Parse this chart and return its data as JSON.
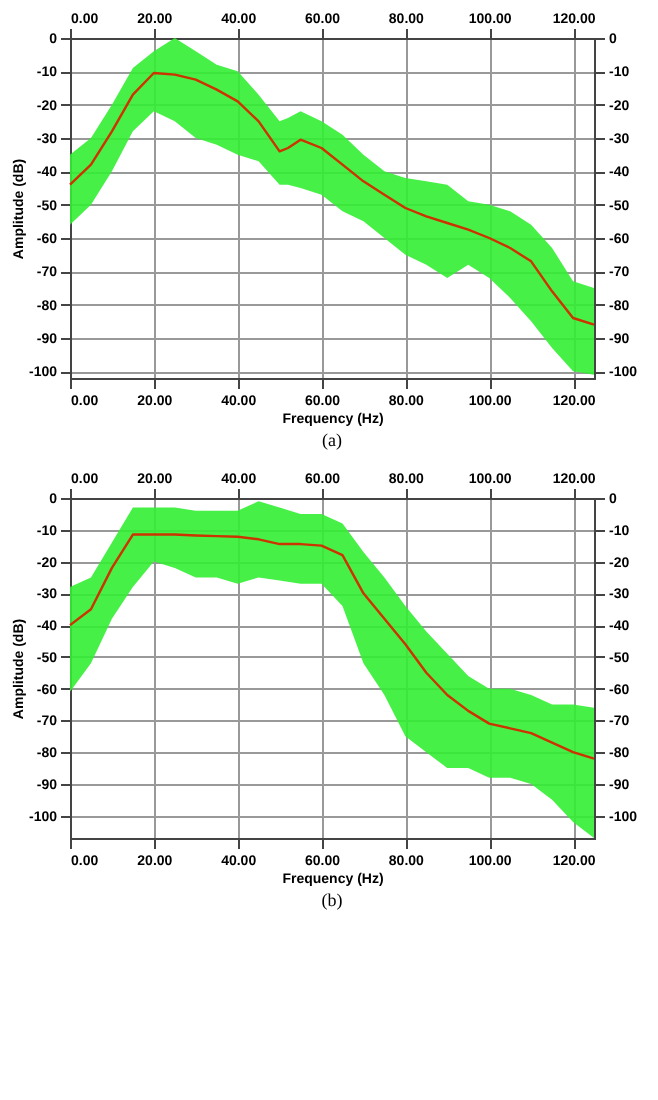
{
  "chart_data": [
    {
      "type": "line",
      "xlabel": "Frequency (Hz)",
      "ylabel": "Amplitude (dB)",
      "annotations": [
        "(a)"
      ],
      "grid": true,
      "x": [
        0,
        5,
        10,
        15,
        20,
        25,
        30,
        35,
        40,
        45,
        50,
        52,
        55,
        60,
        65,
        70,
        75,
        80,
        85,
        90,
        95,
        100,
        105,
        110,
        115,
        120,
        125
      ],
      "series": [
        {
          "color": "#cc3300",
          "lower": [
            -56,
            -50,
            -40,
            -28,
            -22,
            -25,
            -30,
            -32,
            -35,
            -37,
            -44,
            -44,
            -45,
            -47,
            -52,
            -55,
            -60,
            -65,
            -68,
            -72,
            -68,
            -72,
            -78,
            -85,
            -93,
            -100,
            -101
          ],
          "upper": [
            -35,
            -30,
            -20,
            -9,
            -4,
            0,
            -4,
            -8,
            -10,
            -17,
            -25,
            -24,
            -22,
            -25,
            -29,
            -35,
            -40,
            -42,
            -43,
            -44,
            -49,
            -50,
            -52,
            -56,
            -63,
            -73,
            -75
          ],
          "values": [
            -44,
            -38,
            -28,
            -17,
            -10.5,
            -11,
            -12.5,
            -15.5,
            -19,
            -25,
            -34,
            -33,
            -30.5,
            -33,
            -38,
            -43,
            -47,
            -51,
            -53.5,
            -55.5,
            -57.5,
            -60,
            -63,
            -67,
            -76,
            -84,
            -86
          ]
        }
      ],
      "xlim": [
        0,
        125
      ],
      "xticks": [
        {
          "value": 0,
          "label": "0.00"
        },
        {
          "value": 20,
          "label": "20.00"
        },
        {
          "value": 40,
          "label": "40.00"
        },
        {
          "value": 60,
          "label": "60.00"
        },
        {
          "value": 80,
          "label": "80.00"
        },
        {
          "value": 100,
          "label": "100.00"
        },
        {
          "value": 120,
          "label": "120.00"
        }
      ],
      "x2lim": [
        0,
        125
      ],
      "x2ticks": [
        {
          "value": 0,
          "label": "0.00"
        },
        {
          "value": 20,
          "label": "20.00"
        },
        {
          "value": 40,
          "label": "40.00"
        },
        {
          "value": 60,
          "label": "60.00"
        },
        {
          "value": 80,
          "label": "80.00"
        },
        {
          "value": 100,
          "label": "100.00"
        },
        {
          "value": 120,
          "label": "120.00"
        }
      ],
      "ylim": [
        -102,
        0
      ],
      "yticks": [
        0,
        -10,
        -20,
        -30,
        -40,
        -50,
        -60,
        -70,
        -80,
        -90,
        -100
      ],
      "y2lim": [
        -102,
        0
      ],
      "y2ticks": [
        0,
        -10,
        -20,
        -30,
        -40,
        -50,
        -60,
        -70,
        -80,
        -90,
        -100
      ]
    },
    {
      "type": "line",
      "xlabel": "Frequency (Hz)",
      "ylabel": "Amplitude (dB)",
      "annotations": [
        "(b)"
      ],
      "grid": true,
      "x": [
        0,
        5,
        10,
        15,
        20,
        25,
        30,
        35,
        40,
        45,
        50,
        55,
        60,
        65,
        70,
        75,
        80,
        85,
        90,
        95,
        100,
        105,
        110,
        115,
        120,
        125
      ],
      "series": [
        {
          "color": "#cc3300",
          "lower": [
            -61,
            -52,
            -38,
            -28,
            -20,
            -22,
            -25,
            -25,
            -27,
            -25,
            -26,
            -27,
            -27,
            -34,
            -52,
            -62,
            -75,
            -80,
            -85,
            -85,
            -88,
            -88,
            -90,
            -95,
            -102,
            -107
          ],
          "upper": [
            -28,
            -25,
            -14,
            -3,
            -3,
            -3,
            -4,
            -4,
            -4,
            -1,
            -3,
            -5,
            -5,
            -8,
            -17,
            -25,
            -34,
            -42,
            -49,
            -56,
            -60,
            -60,
            -62,
            -65,
            -65,
            -66
          ],
          "values": [
            -40,
            -35,
            -22,
            -11.5,
            -11.5,
            -11.5,
            -11.8,
            -12,
            -12.2,
            -13,
            -14.5,
            -14.5,
            -15,
            -18,
            -30,
            -38,
            -46,
            -55,
            -62,
            -67,
            -71,
            -72.5,
            -74,
            -77,
            -80,
            -82
          ]
        }
      ],
      "xlim": [
        0,
        125
      ],
      "xticks": [
        {
          "value": 0,
          "label": "0.00"
        },
        {
          "value": 20,
          "label": "20.00"
        },
        {
          "value": 40,
          "label": "40.00"
        },
        {
          "value": 60,
          "label": "60.00"
        },
        {
          "value": 80,
          "label": "80.00"
        },
        {
          "value": 100,
          "label": "100.00"
        },
        {
          "value": 120,
          "label": "120.00"
        }
      ],
      "x2lim": [
        0,
        125
      ],
      "x2ticks": [
        {
          "value": 0,
          "label": "0.00"
        },
        {
          "value": 20,
          "label": "20.00"
        },
        {
          "value": 40,
          "label": "40.00"
        },
        {
          "value": 60,
          "label": "60.00"
        },
        {
          "value": 80,
          "label": "80.00"
        },
        {
          "value": 100,
          "label": "100.00"
        },
        {
          "value": 120,
          "label": "120.00"
        }
      ],
      "ylim": [
        -107,
        0
      ],
      "yticks": [
        0,
        -10,
        -20,
        -30,
        -40,
        -50,
        -60,
        -70,
        -80,
        -90,
        -100
      ],
      "y2lim": [
        -107,
        0
      ],
      "y2ticks": [
        0,
        -10,
        -20,
        -30,
        -40,
        -50,
        -60,
        -70,
        -80,
        -90,
        -100
      ]
    }
  ]
}
